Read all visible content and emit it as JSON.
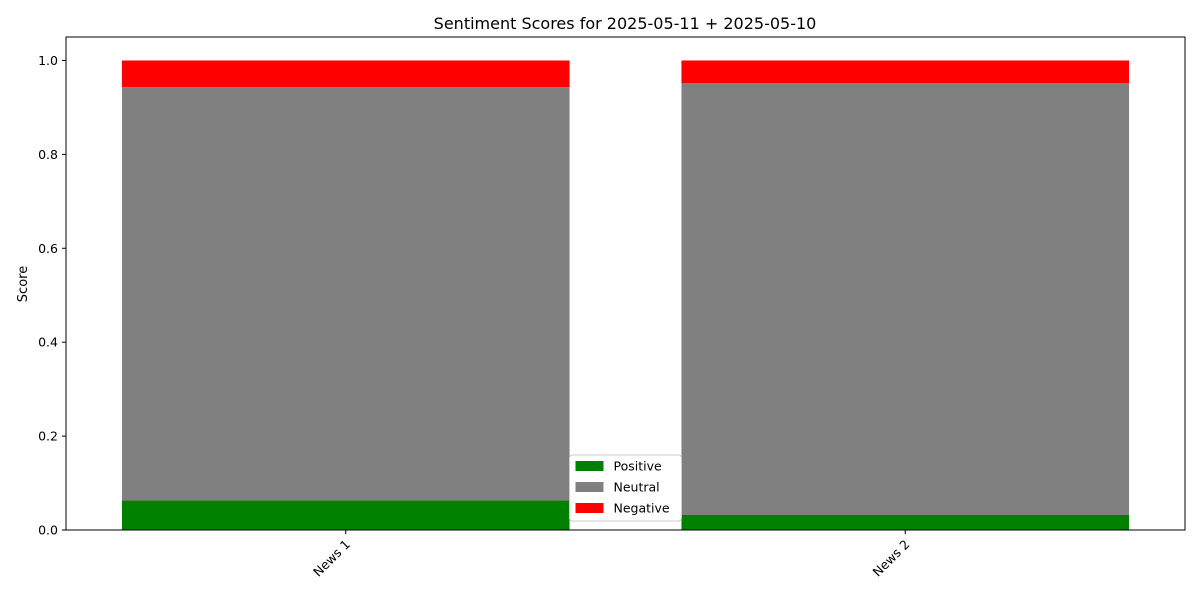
{
  "chart_data": {
    "type": "bar",
    "stacked": true,
    "title": "Sentiment Scores for 2025-05-11 + 2025-05-10",
    "xlabel": "",
    "ylabel": "Score",
    "categories": [
      "News 1",
      "News 2"
    ],
    "series": [
      {
        "name": "Positive",
        "color": "#008000",
        "values": [
          0.063,
          0.032
        ]
      },
      {
        "name": "Neutral",
        "color": "#808080",
        "values": [
          0.88,
          0.92
        ]
      },
      {
        "name": "Negative",
        "color": "#ff0000",
        "values": [
          0.057,
          0.048
        ]
      }
    ],
    "ylim": [
      0,
      1.05
    ],
    "yticks": [
      0.0,
      0.2,
      0.4,
      0.6,
      0.8,
      1.0
    ],
    "ytick_labels": [
      "0.0",
      "0.2",
      "0.4",
      "0.6",
      "0.8",
      "1.0"
    ],
    "xtick_rotation": 45,
    "grid": false,
    "legend_position": "bottom-center"
  }
}
